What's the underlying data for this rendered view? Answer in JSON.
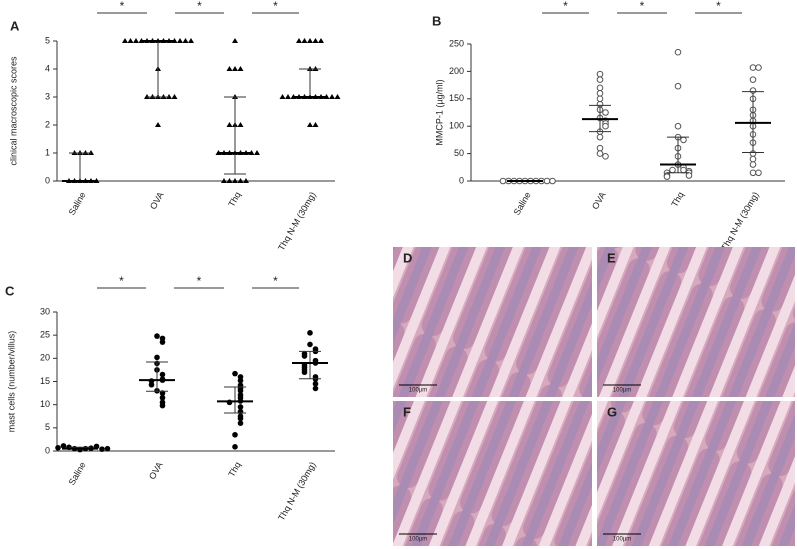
{
  "chart_data": [
    {
      "type": "dot",
      "panel": "A",
      "ylabel": "clinical macroscopic scores",
      "marker": "triangle",
      "categories": [
        "Saline",
        "OVA",
        "Thq",
        "Thq N-M (30mg)"
      ],
      "points": [
        [
          1,
          1,
          1,
          1,
          0,
          0,
          0,
          0,
          0,
          0
        ],
        [
          5,
          5,
          5,
          5,
          5,
          5,
          5,
          5,
          5,
          5,
          5,
          5,
          5,
          4,
          3,
          3,
          3,
          3,
          3,
          3,
          2
        ],
        [
          5,
          4,
          4,
          4,
          3,
          2,
          2,
          2,
          1,
          1,
          1,
          1,
          1,
          1,
          1,
          1,
          0,
          0,
          0,
          0,
          0
        ],
        [
          5,
          5,
          5,
          5,
          5,
          4,
          4,
          3,
          3,
          3,
          3,
          3,
          3,
          3,
          3,
          3,
          3,
          3,
          2,
          2
        ]
      ],
      "median": [
        0,
        5,
        1,
        3
      ],
      "q1": [
        0,
        3,
        0.25,
        3
      ],
      "q3": [
        1,
        5,
        3,
        4
      ],
      "ylim": [
        0,
        5
      ],
      "yticks": [
        0,
        1,
        2,
        3,
        4,
        5
      ],
      "annotations": [
        "*",
        "*",
        "*"
      ]
    },
    {
      "type": "dot",
      "panel": "B",
      "ylabel": "MMCP-1 (µg/ml)",
      "marker": "open-circle",
      "categories": [
        "Saline",
        "OVA",
        "Thq",
        "Thq N-M (30mg)"
      ],
      "points": [
        [
          0,
          0,
          0,
          0,
          0,
          0,
          0,
          0,
          0,
          0
        ],
        [
          195,
          185,
          170,
          160,
          150,
          140,
          130,
          125,
          115,
          110,
          105,
          100,
          90,
          80,
          60,
          50,
          45
        ],
        [
          235,
          173,
          100,
          80,
          75,
          60,
          45,
          30,
          25,
          20,
          20,
          18,
          15,
          15,
          10,
          10,
          8
        ],
        [
          207,
          207,
          185,
          165,
          150,
          130,
          120,
          110,
          100,
          85,
          70,
          50,
          40,
          30,
          15,
          15
        ]
      ],
      "median": [
        0,
        113,
        30,
        106
      ],
      "q1": [
        0,
        90,
        15,
        52
      ],
      "q3": [
        0,
        138,
        80,
        163
      ],
      "ylim": [
        0,
        250
      ],
      "yticks": [
        0,
        50,
        100,
        150,
        200,
        250
      ],
      "annotations": [
        "*",
        "*",
        "*"
      ]
    },
    {
      "type": "dot",
      "panel": "C",
      "ylabel": "mast cells (number/villus)",
      "marker": "circle",
      "categories": [
        "Saline",
        "OVA",
        "Thq",
        "Thq N-M (30mg)"
      ],
      "points": [
        [
          0.3,
          0.5,
          0.5,
          0.6,
          0.8,
          1.0,
          1.1,
          0.4,
          0.7,
          0.5
        ],
        [
          24.8,
          24.3,
          23.5,
          20.2,
          18.9,
          17.5,
          16.5,
          15.5,
          15.3,
          15.1,
          14.3,
          13.0,
          12.5,
          11.5,
          10.5,
          9.8
        ],
        [
          16.7,
          16.0,
          15.2,
          14.2,
          13.5,
          13.0,
          12.1,
          11.5,
          10.8,
          10.5,
          9.5,
          8.5,
          7.5,
          7.0,
          6.0,
          3.5,
          0.9
        ],
        [
          25.5,
          23.0,
          22.0,
          21.5,
          21.0,
          20.5,
          19.5,
          19.0,
          18.5,
          18.0,
          17.5,
          17.0,
          16.0,
          15.5,
          14.5,
          13.5
        ]
      ],
      "median": [
        0.5,
        15.3,
        10.7,
        19
      ],
      "q1": [
        0.4,
        12.9,
        8.2,
        15.6
      ],
      "q3": [
        0.8,
        19.2,
        13.8,
        21.5
      ],
      "ylim": [
        0,
        30
      ],
      "yticks": [
        0,
        5,
        10,
        15,
        20,
        25,
        30
      ],
      "annotations": [
        "*",
        "*",
        "*"
      ]
    }
  ],
  "images": [
    {
      "label": "D",
      "scale_bar": "100µm"
    },
    {
      "label": "E",
      "scale_bar": "100µm"
    },
    {
      "label": "F",
      "scale_bar": "100µm"
    },
    {
      "label": "G",
      "scale_bar": "100µm"
    }
  ]
}
